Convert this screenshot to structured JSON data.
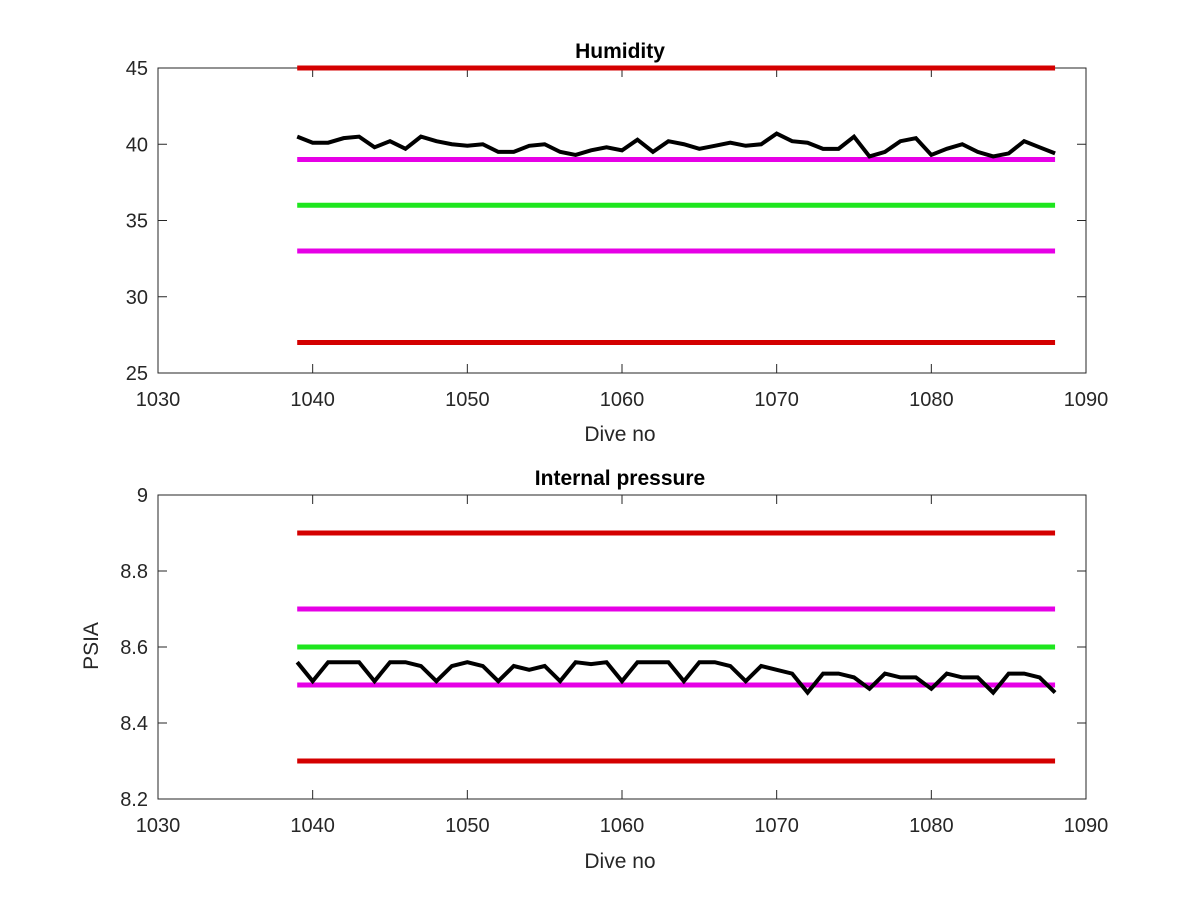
{
  "chart_data": [
    {
      "type": "line",
      "title": "Humidity",
      "xlabel": "Dive no",
      "ylabel": "",
      "xlim": [
        1030,
        1090
      ],
      "ylim": [
        25,
        45
      ],
      "xticks": [
        "1030",
        "1040",
        "1050",
        "1060",
        "1070",
        "1080",
        "1090"
      ],
      "yticks": [
        "25",
        "30",
        "35",
        "40",
        "45"
      ],
      "grid": false,
      "reference_lines": [
        {
          "y": 45,
          "x": [
            1039,
            1088
          ],
          "color": "#d40000"
        },
        {
          "y": 39,
          "x": [
            1039,
            1088
          ],
          "color": "#e600e6"
        },
        {
          "y": 36,
          "x": [
            1039,
            1088
          ],
          "color": "#1ee61e"
        },
        {
          "y": 33,
          "x": [
            1039,
            1088
          ],
          "color": "#e600e6"
        },
        {
          "y": 27,
          "x": [
            1039,
            1088
          ],
          "color": "#d40000"
        }
      ],
      "series": [
        {
          "color": "#000000",
          "x": [
            1039,
            1040,
            1041,
            1042,
            1043,
            1044,
            1045,
            1046,
            1047,
            1048,
            1049,
            1050,
            1051,
            1052,
            1053,
            1054,
            1055,
            1056,
            1057,
            1058,
            1059,
            1060,
            1061,
            1062,
            1063,
            1064,
            1065,
            1066,
            1067,
            1068,
            1069,
            1070,
            1071,
            1072,
            1073,
            1074,
            1075,
            1076,
            1077,
            1078,
            1079,
            1080,
            1081,
            1082,
            1083,
            1084,
            1085,
            1086,
            1087,
            1088
          ],
          "y": [
            40.5,
            40.1,
            40.1,
            40.4,
            40.5,
            39.8,
            40.2,
            39.7,
            40.5,
            40.2,
            40.0,
            39.9,
            40.0,
            39.5,
            39.5,
            39.9,
            40.0,
            39.5,
            39.3,
            39.6,
            39.8,
            39.6,
            40.3,
            39.5,
            40.2,
            40.0,
            39.7,
            39.9,
            40.1,
            39.9,
            40.0,
            40.7,
            40.2,
            40.1,
            39.7,
            39.7,
            40.5,
            39.2,
            39.5,
            40.2,
            40.4,
            39.3,
            39.7,
            40.0,
            39.5,
            39.2,
            39.4,
            40.2,
            39.8,
            39.4
          ]
        }
      ]
    },
    {
      "type": "line",
      "title": "Internal pressure",
      "xlabel": "Dive no",
      "ylabel": "PSIA",
      "xlim": [
        1030,
        1090
      ],
      "ylim": [
        8.2,
        9
      ],
      "xticks": [
        "1030",
        "1040",
        "1050",
        "1060",
        "1070",
        "1080",
        "1090"
      ],
      "yticks": [
        "8.2",
        "8.4",
        "8.6",
        "8.8",
        "9"
      ],
      "grid": false,
      "reference_lines": [
        {
          "y": 8.9,
          "x": [
            1039,
            1088
          ],
          "color": "#d40000"
        },
        {
          "y": 8.7,
          "x": [
            1039,
            1088
          ],
          "color": "#e600e6"
        },
        {
          "y": 8.6,
          "x": [
            1039,
            1088
          ],
          "color": "#1ee61e"
        },
        {
          "y": 8.5,
          "x": [
            1039,
            1088
          ],
          "color": "#e600e6"
        },
        {
          "y": 8.3,
          "x": [
            1039,
            1088
          ],
          "color": "#d40000"
        }
      ],
      "series": [
        {
          "color": "#000000",
          "x": [
            1039,
            1040,
            1041,
            1042,
            1043,
            1044,
            1045,
            1046,
            1047,
            1048,
            1049,
            1050,
            1051,
            1052,
            1053,
            1054,
            1055,
            1056,
            1057,
            1058,
            1059,
            1060,
            1061,
            1062,
            1063,
            1064,
            1065,
            1066,
            1067,
            1068,
            1069,
            1070,
            1071,
            1072,
            1073,
            1074,
            1075,
            1076,
            1077,
            1078,
            1079,
            1080,
            1081,
            1082,
            1083,
            1084,
            1085,
            1086,
            1087,
            1088
          ],
          "y": [
            8.56,
            8.51,
            8.56,
            8.56,
            8.56,
            8.51,
            8.56,
            8.56,
            8.55,
            8.51,
            8.55,
            8.56,
            8.55,
            8.51,
            8.55,
            8.54,
            8.55,
            8.51,
            8.56,
            8.555,
            8.56,
            8.51,
            8.56,
            8.56,
            8.56,
            8.51,
            8.56,
            8.56,
            8.55,
            8.51,
            8.55,
            8.54,
            8.53,
            8.48,
            8.53,
            8.53,
            8.52,
            8.49,
            8.53,
            8.52,
            8.52,
            8.49,
            8.53,
            8.52,
            8.52,
            8.48,
            8.53,
            8.53,
            8.52,
            8.48
          ]
        }
      ]
    }
  ]
}
